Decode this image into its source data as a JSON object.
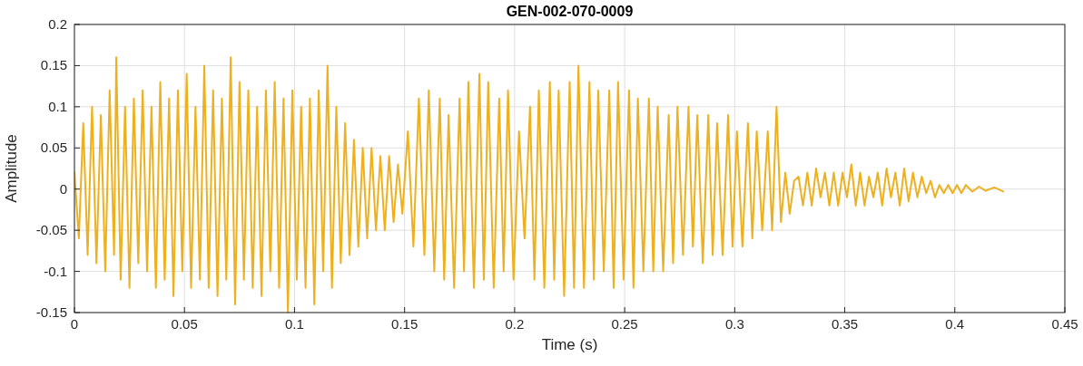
{
  "chart_data": {
    "type": "line",
    "title": "GEN-002-070-0009",
    "xlabel": "Time (s)",
    "ylabel": "Amplitude",
    "xlim": [
      0,
      0.45
    ],
    "xticks": [
      0,
      0.05,
      0.1,
      0.15,
      0.2,
      0.25,
      0.3,
      0.35,
      0.4,
      0.45
    ],
    "ylim": [
      -0.15,
      0.2
    ],
    "yticks": [
      -0.15,
      -0.1,
      -0.05,
      0,
      0.05,
      0.1,
      0.15,
      0.2
    ],
    "grid": true,
    "series": [
      {
        "color": "#edb120",
        "x": [
          0,
          0.002,
          0.004,
          0.006,
          0.008,
          0.01,
          0.012,
          0.014,
          0.016,
          0.018,
          0.019,
          0.021,
          0.023,
          0.025,
          0.027,
          0.029,
          0.031,
          0.033,
          0.035,
          0.037,
          0.039,
          0.041,
          0.043,
          0.045,
          0.047,
          0.049,
          0.051,
          0.053,
          0.055,
          0.057,
          0.059,
          0.061,
          0.063,
          0.065,
          0.067,
          0.069,
          0.071,
          0.073,
          0.075,
          0.077,
          0.079,
          0.081,
          0.083,
          0.085,
          0.087,
          0.089,
          0.091,
          0.093,
          0.095,
          0.097,
          0.099,
          0.101,
          0.103,
          0.105,
          0.107,
          0.109,
          0.111,
          0.113,
          0.115,
          0.117,
          0.119,
          0.121,
          0.123,
          0.125,
          0.127,
          0.129,
          0.131,
          0.133,
          0.135,
          0.137,
          0.139,
          0.141,
          0.143,
          0.145,
          0.147,
          0.149,
          0.1515,
          0.154,
          0.1565,
          0.159,
          0.161,
          0.1635,
          0.166,
          0.168,
          0.17,
          0.1725,
          0.175,
          0.177,
          0.179,
          0.1815,
          0.184,
          0.186,
          0.188,
          0.1905,
          0.193,
          0.195,
          0.197,
          0.1995,
          0.202,
          0.2045,
          0.207,
          0.209,
          0.211,
          0.2135,
          0.216,
          0.218,
          0.22,
          0.2225,
          0.225,
          0.227,
          0.229,
          0.2315,
          0.234,
          0.236,
          0.238,
          0.2405,
          0.243,
          0.245,
          0.247,
          0.2495,
          0.252,
          0.254,
          0.256,
          0.2585,
          0.261,
          0.263,
          0.265,
          0.2675,
          0.27,
          0.272,
          0.274,
          0.2765,
          0.279,
          0.281,
          0.283,
          0.2855,
          0.288,
          0.29,
          0.292,
          0.2945,
          0.297,
          0.299,
          0.301,
          0.3035,
          0.306,
          0.308,
          0.31,
          0.3125,
          0.315,
          0.317,
          0.319,
          0.321,
          0.323,
          0.325,
          0.327,
          0.329,
          0.331,
          0.333,
          0.335,
          0.337,
          0.339,
          0.341,
          0.343,
          0.345,
          0.347,
          0.349,
          0.351,
          0.353,
          0.355,
          0.357,
          0.359,
          0.361,
          0.363,
          0.365,
          0.367,
          0.369,
          0.371,
          0.373,
          0.375,
          0.377,
          0.379,
          0.381,
          0.383,
          0.385,
          0.387,
          0.389,
          0.391,
          0.393,
          0.395,
          0.397,
          0.399,
          0.401,
          0.403,
          0.405,
          0.408,
          0.411,
          0.414,
          0.418,
          0.422
        ],
        "values": [
          0.02,
          -0.06,
          0.08,
          -0.08,
          0.1,
          -0.09,
          0.09,
          -0.1,
          0.12,
          -0.08,
          0.16,
          -0.11,
          0.1,
          -0.12,
          0.11,
          -0.09,
          0.12,
          -0.1,
          0.1,
          -0.12,
          0.13,
          -0.11,
          0.11,
          -0.13,
          0.12,
          -0.1,
          0.14,
          -0.12,
          0.1,
          -0.11,
          0.15,
          -0.12,
          0.12,
          -0.13,
          0.11,
          -0.11,
          0.16,
          -0.14,
          0.13,
          -0.11,
          0.12,
          -0.12,
          0.1,
          -0.13,
          0.12,
          -0.1,
          0.13,
          -0.12,
          0.11,
          -0.15,
          0.12,
          -0.11,
          0.1,
          -0.12,
          0.11,
          -0.14,
          0.12,
          -0.1,
          0.15,
          -0.12,
          0.1,
          -0.09,
          0.08,
          -0.08,
          0.06,
          -0.07,
          0.05,
          -0.06,
          0.05,
          -0.05,
          0.04,
          -0.05,
          0.04,
          -0.04,
          0.03,
          -0.03,
          0.07,
          -0.07,
          0.11,
          -0.08,
          0.12,
          -0.1,
          0.11,
          -0.11,
          0.09,
          -0.12,
          0.11,
          -0.1,
          0.13,
          -0.12,
          0.14,
          -0.11,
          0.13,
          -0.12,
          0.11,
          -0.1,
          0.12,
          -0.11,
          0.07,
          -0.06,
          0.1,
          -0.11,
          0.12,
          -0.12,
          0.13,
          -0.11,
          0.12,
          -0.13,
          0.13,
          -0.12,
          0.15,
          -0.12,
          0.13,
          -0.11,
          0.12,
          -0.1,
          0.12,
          -0.12,
          0.13,
          -0.11,
          0.12,
          -0.12,
          0.11,
          -0.1,
          0.11,
          -0.1,
          0.1,
          -0.1,
          0.09,
          -0.09,
          0.1,
          -0.08,
          0.1,
          -0.07,
          0.09,
          -0.09,
          0.09,
          -0.08,
          0.08,
          -0.08,
          0.09,
          -0.07,
          0.07,
          -0.07,
          0.08,
          -0.06,
          0.07,
          -0.05,
          0.07,
          -0.05,
          0.1,
          -0.04,
          0.02,
          -0.03,
          0.01,
          0.015,
          -0.02,
          0.02,
          -0.02,
          0.025,
          -0.01,
          0.02,
          -0.02,
          0.02,
          -0.02,
          0.02,
          -0.01,
          0.03,
          -0.02,
          0.02,
          -0.02,
          0.015,
          -0.01,
          0.02,
          -0.02,
          0.025,
          -0.01,
          0.02,
          -0.02,
          0.025,
          -0.015,
          0.02,
          -0.01,
          0.015,
          -0.005,
          0.01,
          -0.01,
          0.005,
          -0.005,
          0.005,
          -0.005,
          0.005,
          -0.005,
          0.005,
          -0.003,
          0.003,
          -0.002,
          0.002,
          -0.003
        ]
      }
    ]
  }
}
